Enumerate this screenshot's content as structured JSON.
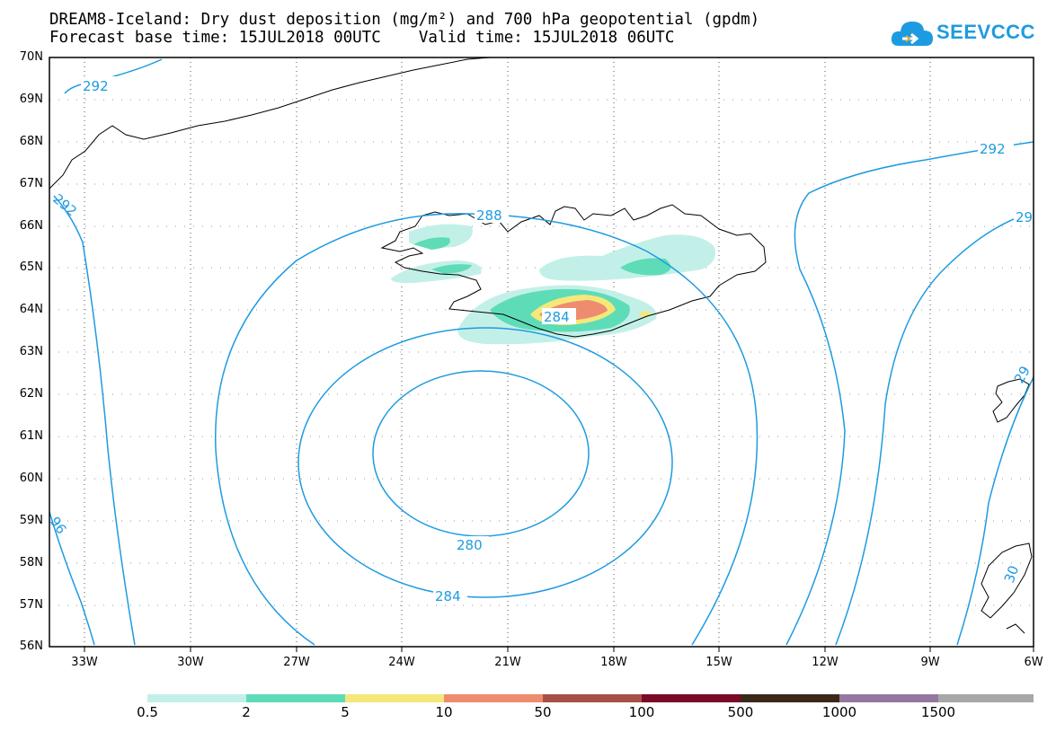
{
  "title_line1": "DREAM8-Iceland: Dry dust deposition (mg/m²) and 700 hPa geopotential (gpdm)",
  "title_line2": "Forecast base time: 15JUL2018 00UTC    Valid time: 15JUL2018 06UTC",
  "logo_text": "SEEVCCC",
  "colors": {
    "contour": "#1e9be0",
    "coast": "#000000"
  },
  "lat_labels": [
    "70N",
    "69N",
    "68N",
    "67N",
    "66N",
    "65N",
    "64N",
    "63N",
    "62N",
    "61N",
    "60N",
    "59N",
    "58N",
    "57N",
    "56N"
  ],
  "lon_labels": [
    "33W",
    "30W",
    "27W",
    "24W",
    "21W",
    "18W",
    "15W",
    "12W",
    "9W",
    "6W"
  ],
  "contour_labels": [
    "292",
    "292",
    "292",
    "29",
    "288",
    "284",
    "280",
    "284",
    "96",
    "29",
    "30"
  ],
  "colorbar": {
    "labels": [
      "0.5",
      "2",
      "5",
      "10",
      "50",
      "100",
      "500",
      "1000",
      "1500"
    ],
    "colors": [
      "#c2f0e8",
      "#5edcb8",
      "#f5e87a",
      "#ee8c70",
      "#a85048",
      "#7a0a28",
      "#3a2818",
      "#9478a0",
      "#a8a8a8"
    ]
  }
}
